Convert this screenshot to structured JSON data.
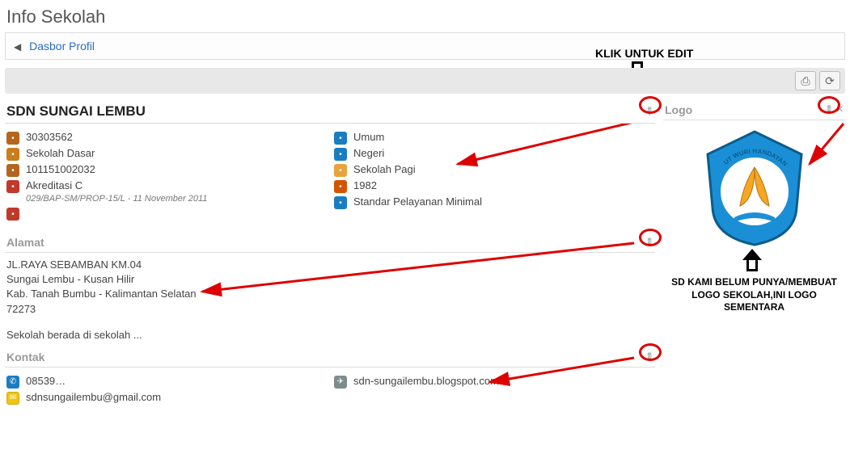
{
  "page_title": "Info Sekolah",
  "breadcrumb": {
    "label": "Dasbor Profil"
  },
  "annotations": {
    "edit_hint": "KLIK UNTUK EDIT",
    "logo_note": "SD KAMI BELUM PUNYA/MEMBUAT LOGO SEKOLAH,INI LOGO SEMENTARA"
  },
  "school": {
    "name": "SDN SUNGAI LEMBU",
    "left_col": [
      {
        "icon": "house",
        "text": "30303562"
      },
      {
        "icon": "school",
        "text": "Sekolah Dasar"
      },
      {
        "icon": "house",
        "text": "101151002032"
      },
      {
        "icon": "doc",
        "text": "Akreditasi C",
        "sub": "029/BAP-SM/PROP-15/L - 11 November 2011"
      },
      {
        "icon": "doc",
        "text": ""
      }
    ],
    "right_col": [
      {
        "icon": "blue",
        "text": "Umum"
      },
      {
        "icon": "blue",
        "text": "Negeri"
      },
      {
        "icon": "orange",
        "text": "Sekolah Pagi"
      },
      {
        "icon": "cake",
        "text": "1982"
      },
      {
        "icon": "blue",
        "text": "Standar Pelayanan Minimal"
      }
    ]
  },
  "alamat": {
    "title": "Alamat",
    "lines": [
      "JL.RAYA SEBAMBAN KM.04",
      "Sungai Lembu - Kusan Hilir",
      "Kab. Tanah Bumbu - Kalimantan Selatan",
      "72273"
    ],
    "extra": "Sekolah berada di sekolah ..."
  },
  "kontak": {
    "title": "Kontak",
    "phone": "08539…",
    "email": "sdnsungailembu@gmail.com",
    "web": "sdn-sungailembu.blogspot.com"
  },
  "logo": {
    "title": "Logo",
    "motto": "TUT WURI HANDAYANI",
    "colors": {
      "shield": "#1b8fd6",
      "stroke": "#0b5c8a",
      "inner": "#ffffff",
      "accent": "#f5a623"
    }
  }
}
